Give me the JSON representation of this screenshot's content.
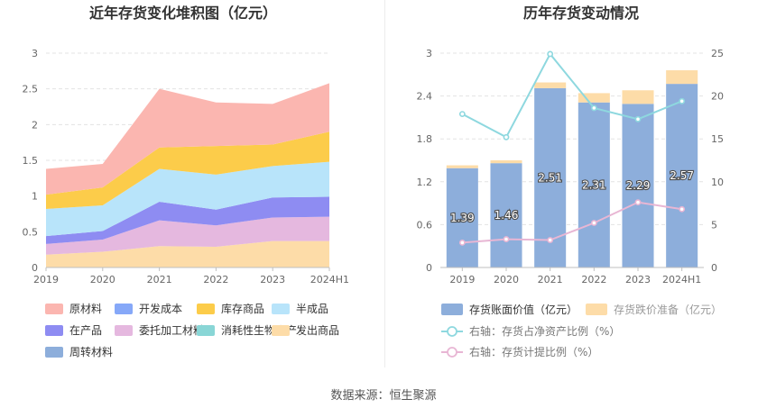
{
  "footer": {
    "source": "数据来源：恒生聚源"
  },
  "chart_data": [
    {
      "type": "area",
      "title": "近年存货变化堆积图（亿元）",
      "stacked": true,
      "categories": [
        "2019",
        "2020",
        "2021",
        "2022",
        "2023",
        "2024H1"
      ],
      "y_ticks": [
        "0",
        "0.5",
        "1",
        "1.5",
        "2",
        "2.5",
        "3"
      ],
      "ylim": [
        0,
        3
      ],
      "grid": true,
      "legend_position": "bottom",
      "series": [
        {
          "name": "发出商品",
          "color": "#FDDCA8",
          "values": [
            0.18,
            0.22,
            0.3,
            0.29,
            0.37,
            0.37
          ]
        },
        {
          "name": "委托加工材料",
          "color": "#E5B8DF",
          "values": [
            0.15,
            0.17,
            0.36,
            0.3,
            0.33,
            0.34
          ]
        },
        {
          "name": "在产品",
          "color": "#8E8CF2",
          "values": [
            0.11,
            0.12,
            0.26,
            0.22,
            0.28,
            0.28
          ]
        },
        {
          "name": "半成品",
          "color": "#B8E4FA",
          "values": [
            0.38,
            0.36,
            0.46,
            0.49,
            0.44,
            0.49
          ]
        },
        {
          "name": "库存商品",
          "color": "#FCCC4A",
          "values": [
            0.2,
            0.25,
            0.3,
            0.4,
            0.3,
            0.42
          ]
        },
        {
          "name": "原材料",
          "color": "#FBB6B0",
          "values": [
            0.36,
            0.33,
            0.82,
            0.61,
            0.57,
            0.68
          ]
        },
        {
          "name": "开发成本",
          "color": "#86A8F8",
          "values": [
            0,
            0,
            0,
            0,
            0,
            0
          ]
        },
        {
          "name": "消耗性生物资产",
          "color": "#89D6D6",
          "values": [
            0,
            0,
            0,
            0,
            0,
            0
          ]
        },
        {
          "name": "周转材料",
          "color": "#8DAEDB",
          "values": [
            0,
            0,
            0,
            0,
            0,
            0
          ]
        }
      ],
      "legend_order": [
        "原材料",
        "开发成本",
        "库存商品",
        "半成品",
        "在产品",
        "委托加工材料",
        "消耗性生物资产",
        "发出商品",
        "周转材料"
      ]
    },
    {
      "type": "bar",
      "title": "历年存货变动情况",
      "categories": [
        "2019",
        "2020",
        "2021",
        "2022",
        "2023",
        "2024H1"
      ],
      "y_left_ticks": [
        "0",
        "0.6",
        "1.2",
        "1.8",
        "2.4",
        "3"
      ],
      "y_right_ticks": [
        "0",
        "5",
        "10",
        "15",
        "20",
        "25"
      ],
      "ylim_left": [
        0,
        3
      ],
      "ylim_right": [
        0,
        25
      ],
      "grid": true,
      "legend_position": "bottom",
      "bars": [
        {
          "name": "存货账面价值（亿元）",
          "color": "#8DAEDB",
          "values": [
            1.39,
            1.46,
            2.51,
            2.31,
            2.29,
            2.57
          ],
          "labels": [
            "1.39",
            "1.46",
            "2.51",
            "2.31",
            "2.29",
            "2.57"
          ]
        },
        {
          "name": "存货跌价准备（亿元）",
          "color": "#FDDCA8",
          "values": [
            0.04,
            0.04,
            0.08,
            0.13,
            0.19,
            0.19
          ]
        }
      ],
      "lines": [
        {
          "name": "右轴：存货占净资产比例（%）",
          "color": "#8ED8DF",
          "values": [
            17.9,
            15.2,
            24.9,
            18.6,
            17.3,
            19.4
          ]
        },
        {
          "name": "右轴：存货计提比例（%）",
          "color": "#E8B6D4",
          "values": [
            2.9,
            3.3,
            3.2,
            5.2,
            7.6,
            6.8
          ]
        }
      ]
    }
  ]
}
